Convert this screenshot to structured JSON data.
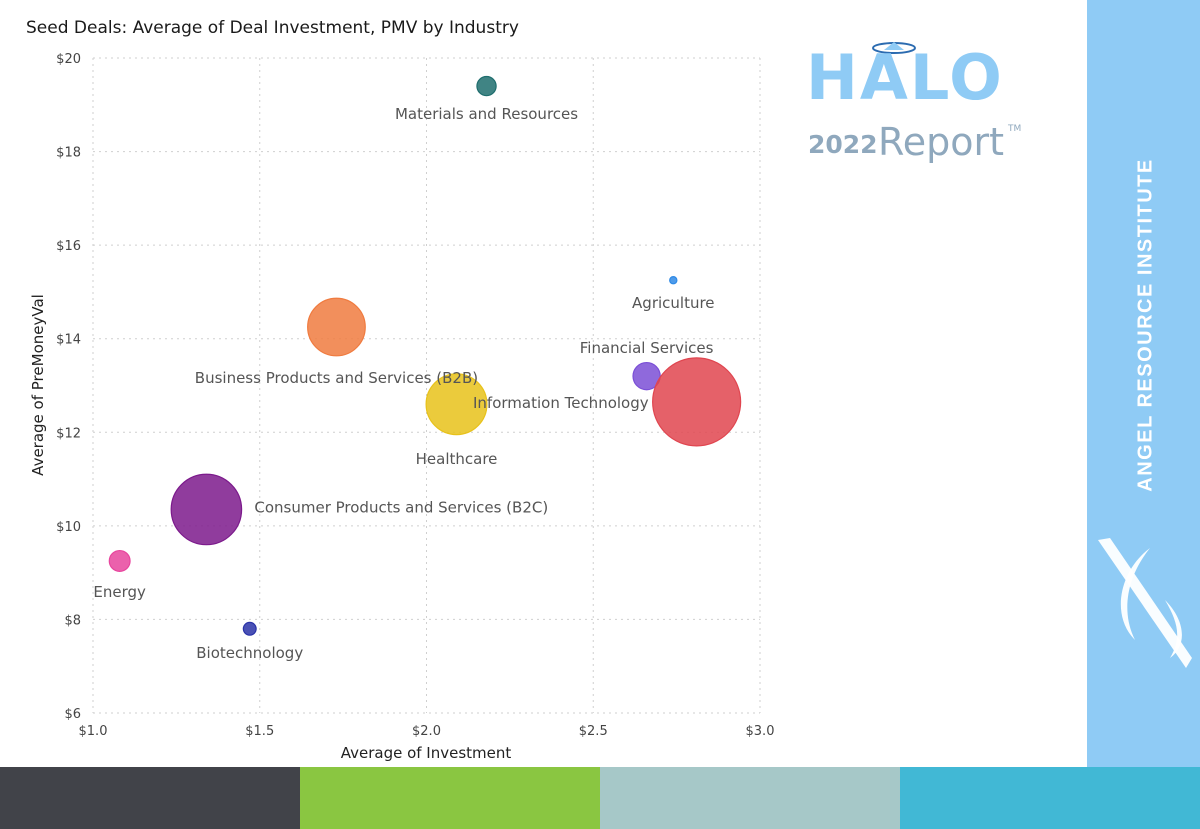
{
  "page": {
    "logo": {
      "word": "HALO",
      "year": "2022",
      "report": "Report",
      "tm": "TM"
    },
    "sidebar_text": "ANGEL RESOURCE INSTITUTE",
    "colors": {
      "sidebar": "#8fcbf5",
      "logo_blue": "#8fcbf5",
      "logo_gray": "#8fa8bd",
      "footer": [
        "#414349",
        "#8ac641",
        "#a6c8c8",
        "#41b8d5"
      ]
    }
  },
  "chart_data": {
    "type": "scatter",
    "title": "Seed Deals: Average of Deal Investment, PMV by Industry",
    "xlabel": "Average of Investment",
    "ylabel": "Average of PreMoneyVal",
    "xlim": [
      1.0,
      3.0
    ],
    "ylim": [
      6,
      20
    ],
    "x_ticks": [
      {
        "value": 1.0,
        "label": "$1.0"
      },
      {
        "value": 1.5,
        "label": "$1.5"
      },
      {
        "value": 2.0,
        "label": "$2.0"
      },
      {
        "value": 2.5,
        "label": "$2.5"
      },
      {
        "value": 3.0,
        "label": "$3.0"
      }
    ],
    "y_ticks": [
      {
        "value": 6,
        "label": "$6"
      },
      {
        "value": 8,
        "label": "$8"
      },
      {
        "value": 10,
        "label": "$10"
      },
      {
        "value": 12,
        "label": "$12"
      },
      {
        "value": 14,
        "label": "$14"
      },
      {
        "value": 16,
        "label": "$16"
      },
      {
        "value": 18,
        "label": "$18"
      },
      {
        "value": 20,
        "label": "$20"
      }
    ],
    "grid": true,
    "bubble_size_unit": "relative",
    "points": [
      {
        "label": "Materials and Resources",
        "x": 2.18,
        "y": 19.4,
        "size": 12,
        "color": "#1f6e6e"
      },
      {
        "label": "Agriculture",
        "x": 2.74,
        "y": 15.25,
        "size": 4.5,
        "color": "#2f8ae6"
      },
      {
        "label": "Financial Services",
        "x": 2.66,
        "y": 13.2,
        "size": 17,
        "color": "#7b4fd6"
      },
      {
        "label": "Information Technology",
        "x": 2.81,
        "y": 12.65,
        "size": 55,
        "color": "#e0454f"
      },
      {
        "label": "Business Products and Services (B2B)",
        "x": 1.73,
        "y": 14.25,
        "size": 36,
        "color": "#f07b3f"
      },
      {
        "label": "Healthcare",
        "x": 2.09,
        "y": 12.6,
        "size": 38,
        "color": "#e8c21a"
      },
      {
        "label": "Consumer Products and Services (B2C)",
        "x": 1.34,
        "y": 10.35,
        "size": 44,
        "color": "#7c1a8c"
      },
      {
        "label": "Energy",
        "x": 1.08,
        "y": 9.25,
        "size": 13,
        "color": "#e8459e"
      },
      {
        "label": "Biotechnology",
        "x": 1.47,
        "y": 7.8,
        "size": 8,
        "color": "#2a33a8"
      }
    ]
  }
}
